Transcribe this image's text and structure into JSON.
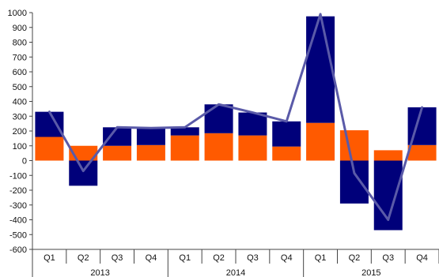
{
  "chart_data": {
    "type": "bar",
    "stacked": true,
    "title": "",
    "xlabel": "",
    "ylabel": "",
    "ylim": [
      -600,
      1000
    ],
    "yticks": [
      1000,
      900,
      800,
      700,
      600,
      500,
      400,
      300,
      200,
      100,
      0,
      -100,
      -200,
      -300,
      -400,
      -500,
      -600
    ],
    "grid": false,
    "legend": "none",
    "categories": [
      "Q1",
      "Q2",
      "Q3",
      "Q4",
      "Q1",
      "Q2",
      "Q3",
      "Q4",
      "Q1",
      "Q2",
      "Q3",
      "Q4"
    ],
    "groups": [
      {
        "label": "2013",
        "span": 4
      },
      {
        "label": "2014",
        "span": 4
      },
      {
        "label": "2015",
        "span": 4
      }
    ],
    "series": [
      {
        "kind": "bar",
        "color": "#ff5a00",
        "values": [
          160,
          100,
          100,
          105,
          170,
          185,
          170,
          95,
          255,
          205,
          70,
          105
        ]
      },
      {
        "kind": "bar",
        "color": "#00007a",
        "values": [
          170,
          -170,
          125,
          115,
          55,
          195,
          155,
          170,
          720,
          -290,
          -470,
          255
        ]
      },
      {
        "kind": "line",
        "color": "#5a5aa8",
        "values": [
          330,
          -70,
          225,
          220,
          225,
          380,
          325,
          265,
          990,
          -85,
          -400,
          360
        ]
      }
    ]
  }
}
